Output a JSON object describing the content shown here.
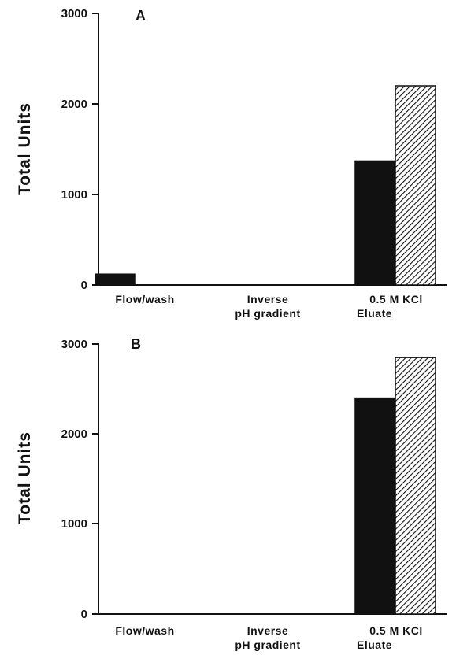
{
  "chart_data": [
    {
      "type": "bar",
      "panel_label": "A",
      "ylabel": "Total  Units",
      "ylim": [
        0,
        3000
      ],
      "yticks": [
        "3000",
        "2000",
        "1000",
        "0"
      ],
      "category_labels": [
        [
          "Flow/wash"
        ],
        [
          "Inverse",
          "pH  gradient"
        ],
        [
          "0.5  M  KCl",
          "Eluate"
        ]
      ],
      "series": [
        {
          "pattern": "solid",
          "color": "#111111",
          "values": [
            120,
            0,
            1370
          ]
        },
        {
          "pattern": "hatched",
          "color": "#111111",
          "values": [
            0,
            0,
            2200
          ]
        }
      ]
    },
    {
      "type": "bar",
      "panel_label": "B",
      "ylabel": "Total  Units",
      "ylim": [
        0,
        3000
      ],
      "yticks": [
        "3000",
        "2000",
        "1000",
        "0"
      ],
      "category_labels": [
        [
          "Flow/wash"
        ],
        [
          "Inverse",
          "pH  gradient"
        ],
        [
          "0.5  M  KCl",
          "Eluate"
        ]
      ],
      "series": [
        {
          "pattern": "solid",
          "color": "#111111",
          "values": [
            0,
            0,
            2400
          ]
        },
        {
          "pattern": "hatched",
          "color": "#111111",
          "values": [
            0,
            0,
            2850
          ]
        }
      ]
    }
  ]
}
